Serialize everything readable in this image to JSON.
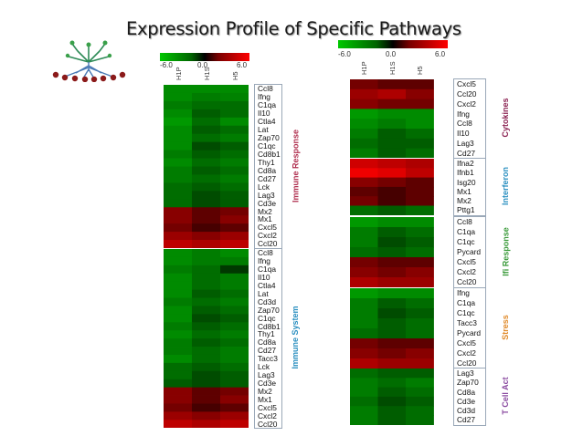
{
  "title": "Expression Profile of Specific Pathways",
  "chart_data": [
    {
      "type": "heatmap",
      "color_scale": {
        "min": -6.0,
        "mid": 0.0,
        "max": 6.0,
        "tick_labels": [
          "-6.0",
          "0.0",
          "6.0"
        ],
        "colors": [
          "#00c800",
          "#000000",
          "#ff0000"
        ]
      },
      "columns": [
        "H1P",
        "H1S",
        "H5"
      ],
      "panels": [
        {
          "name": "Immune Response",
          "label_color": "#b03050",
          "rows": [
            {
              "gene": "Ccl8",
              "values": [
                -3.5,
                -3.5,
                -3.5
              ]
            },
            {
              "gene": "Ifng",
              "values": [
                -3.5,
                -3.0,
                -3.2
              ]
            },
            {
              "gene": "C1qa",
              "values": [
                -3.0,
                -2.5,
                -2.5
              ]
            },
            {
              "gene": "Il10",
              "values": [
                -3.5,
                -2.0,
                -2.5
              ]
            },
            {
              "gene": "Ctla4",
              "values": [
                -4.0,
                -2.5,
                -3.5
              ]
            },
            {
              "gene": "Lat",
              "values": [
                -3.5,
                -2.0,
                -2.5
              ]
            },
            {
              "gene": "Zap70",
              "values": [
                -3.5,
                -2.5,
                -3.0
              ]
            },
            {
              "gene": "C1qc",
              "values": [
                -3.5,
                -1.5,
                -2.0
              ]
            },
            {
              "gene": "Cd8b1",
              "values": [
                -3.0,
                -2.0,
                -2.5
              ]
            },
            {
              "gene": "Thy1",
              "values": [
                -3.5,
                -2.5,
                -3.0
              ]
            },
            {
              "gene": "Cd8a",
              "values": [
                -3.0,
                -2.0,
                -2.5
              ]
            },
            {
              "gene": "Cd27",
              "values": [
                -3.0,
                -2.5,
                -3.0
              ]
            },
            {
              "gene": "Lck",
              "values": [
                -2.5,
                -2.0,
                -2.5
              ]
            },
            {
              "gene": "Lag3",
              "values": [
                -2.5,
                -1.5,
                -2.0
              ]
            },
            {
              "gene": "Cd3e",
              "values": [
                -2.5,
                -1.5,
                -2.0
              ]
            },
            {
              "gene": "Mx2",
              "values": [
                2.5,
                1.5,
                2.0
              ]
            },
            {
              "gene": "Mx1",
              "values": [
                2.5,
                1.5,
                2.5
              ]
            },
            {
              "gene": "Cxcl5",
              "values": [
                2.0,
                1.0,
                1.5
              ]
            },
            {
              "gene": "Cxcl2",
              "values": [
                3.0,
                2.5,
                3.0
              ]
            },
            {
              "gene": "Ccl20",
              "values": [
                4.0,
                3.5,
                4.0
              ]
            }
          ]
        },
        {
          "name": "Immune System",
          "label_color": "#2a8fc0",
          "rows": [
            {
              "gene": "Ccl8",
              "values": [
                -3.5,
                -3.0,
                -3.5
              ]
            },
            {
              "gene": "Ifng",
              "values": [
                -3.5,
                -3.0,
                -3.0
              ]
            },
            {
              "gene": "C1qa",
              "values": [
                -3.0,
                -2.5,
                -1.0
              ]
            },
            {
              "gene": "Il10",
              "values": [
                -3.5,
                -2.5,
                -3.0
              ]
            },
            {
              "gene": "Ctla4",
              "values": [
                -3.5,
                -2.5,
                -3.0
              ]
            },
            {
              "gene": "Lat",
              "values": [
                -3.5,
                -2.0,
                -2.5
              ]
            },
            {
              "gene": "Cd3d",
              "values": [
                -3.0,
                -2.5,
                -3.0
              ]
            },
            {
              "gene": "Zap70",
              "values": [
                -3.5,
                -2.0,
                -2.5
              ]
            },
            {
              "gene": "C1qc",
              "values": [
                -3.5,
                -1.5,
                -2.0
              ]
            },
            {
              "gene": "Cd8b1",
              "values": [
                -3.0,
                -2.0,
                -2.5
              ]
            },
            {
              "gene": "Thy1",
              "values": [
                -3.5,
                -2.5,
                -3.0
              ]
            },
            {
              "gene": "Cd8a",
              "values": [
                -3.0,
                -2.0,
                -2.5
              ]
            },
            {
              "gene": "Cd27",
              "values": [
                -3.0,
                -2.5,
                -3.0
              ]
            },
            {
              "gene": "Tacc3",
              "values": [
                -3.5,
                -2.5,
                -3.0
              ]
            },
            {
              "gene": "Lck",
              "values": [
                -2.5,
                -2.0,
                -2.5
              ]
            },
            {
              "gene": "Lag3",
              "values": [
                -2.5,
                -1.5,
                -2.0
              ]
            },
            {
              "gene": "Cd3e",
              "values": [
                -2.0,
                -1.5,
                -2.0
              ]
            },
            {
              "gene": "Mx2",
              "values": [
                2.5,
                1.5,
                2.0
              ]
            },
            {
              "gene": "Mx1",
              "values": [
                2.5,
                1.5,
                2.5
              ]
            },
            {
              "gene": "Cxcl5",
              "values": [
                2.0,
                1.0,
                1.5
              ]
            },
            {
              "gene": "Cxcl2",
              "values": [
                3.0,
                2.5,
                3.0
              ]
            },
            {
              "gene": "Ccl20",
              "values": [
                4.0,
                3.5,
                4.0
              ]
            }
          ]
        }
      ]
    },
    {
      "type": "heatmap",
      "color_scale": {
        "min": -6.0,
        "mid": 0.0,
        "max": 6.0,
        "tick_labels": [
          "-6.0",
          "0.0",
          "6.0"
        ],
        "colors": [
          "#00c800",
          "#000000",
          "#ff0000"
        ]
      },
      "columns": [
        "H1P",
        "H1S",
        "H5"
      ],
      "panels": [
        {
          "name": "Cytokines",
          "label_color": "#8b2252",
          "rows": [
            {
              "gene": "Cxcl5",
              "values": [
                2.0,
                1.5,
                1.5
              ]
            },
            {
              "gene": "Ccl20",
              "values": [
                3.0,
                3.5,
                2.5
              ]
            },
            {
              "gene": "Cxcl2",
              "values": [
                2.5,
                2.0,
                2.0
              ]
            },
            {
              "gene": "Ifng",
              "values": [
                -4.0,
                -3.5,
                -3.5
              ]
            },
            {
              "gene": "Ccl8",
              "values": [
                -3.5,
                -3.0,
                -3.5
              ]
            },
            {
              "gene": "Il10",
              "values": [
                -3.0,
                -2.0,
                -2.5
              ]
            },
            {
              "gene": "Lag3",
              "values": [
                -2.5,
                -2.0,
                -2.0
              ]
            },
            {
              "gene": "Cd27",
              "values": [
                -3.0,
                -2.0,
                -2.5
              ]
            }
          ]
        },
        {
          "name": "Interferon",
          "label_color": "#2a8fc0",
          "rows": [
            {
              "gene": "Ifna2",
              "values": [
                4.5,
                4.0,
                3.5
              ]
            },
            {
              "gene": "Ifnb1",
              "values": [
                5.5,
                5.0,
                4.0
              ]
            },
            {
              "gene": "Isg20",
              "values": [
                2.5,
                2.0,
                1.5
              ]
            },
            {
              "gene": "Mx1",
              "values": [
                1.5,
                1.0,
                1.5
              ]
            },
            {
              "gene": "Mx2",
              "values": [
                2.0,
                1.0,
                1.5
              ]
            },
            {
              "gene": "Pttg1",
              "values": [
                -2.5,
                -2.0,
                -2.5
              ]
            }
          ]
        },
        {
          "name": "Ifi Response",
          "label_color": "#3a9a3a",
          "rows": [
            {
              "gene": "Ccl8",
              "values": [
                -4.0,
                -3.5,
                -3.5
              ]
            },
            {
              "gene": "C1qa",
              "values": [
                -3.0,
                -2.0,
                -2.5
              ]
            },
            {
              "gene": "C1qc",
              "values": [
                -3.0,
                -1.5,
                -2.0
              ]
            },
            {
              "gene": "Pycard",
              "values": [
                -2.5,
                -2.0,
                -2.5
              ]
            },
            {
              "gene": "Cxcl5",
              "values": [
                2.0,
                1.5,
                1.5
              ]
            },
            {
              "gene": "Cxcl2",
              "values": [
                2.5,
                2.0,
                2.5
              ]
            },
            {
              "gene": "Ccl20",
              "values": [
                3.5,
                3.0,
                3.0
              ]
            }
          ]
        },
        {
          "name": "Stress",
          "label_color": "#e08a2a",
          "rows": [
            {
              "gene": "Ifng",
              "values": [
                -4.0,
                -3.5,
                -3.5
              ]
            },
            {
              "gene": "C1qa",
              "values": [
                -3.0,
                -2.0,
                -2.5
              ]
            },
            {
              "gene": "C1qc",
              "values": [
                -3.0,
                -1.5,
                -2.0
              ]
            },
            {
              "gene": "Tacc3",
              "values": [
                -3.0,
                -2.0,
                -2.5
              ]
            },
            {
              "gene": "Pycard",
              "values": [
                -2.5,
                -2.0,
                -2.5
              ]
            },
            {
              "gene": "Cxcl5",
              "values": [
                2.0,
                1.5,
                1.5
              ]
            },
            {
              "gene": "Cxcl2",
              "values": [
                2.5,
                2.0,
                2.5
              ]
            },
            {
              "gene": "Ccl20",
              "values": [
                3.5,
                3.0,
                3.0
              ]
            }
          ]
        },
        {
          "name": "T Cell Act",
          "label_color": "#8a4aa0",
          "rows": [
            {
              "gene": "Lag3",
              "values": [
                -2.5,
                -2.0,
                -2.0
              ]
            },
            {
              "gene": "Zap70",
              "values": [
                -3.0,
                -2.5,
                -3.0
              ]
            },
            {
              "gene": "Cd8a",
              "values": [
                -3.0,
                -2.0,
                -2.5
              ]
            },
            {
              "gene": "Cd3e",
              "values": [
                -2.5,
                -1.5,
                -2.0
              ]
            },
            {
              "gene": "Cd3d",
              "values": [
                -3.0,
                -2.0,
                -2.5
              ]
            },
            {
              "gene": "Cd27",
              "values": [
                -3.0,
                -2.0,
                -2.5
              ]
            }
          ]
        }
      ]
    }
  ]
}
